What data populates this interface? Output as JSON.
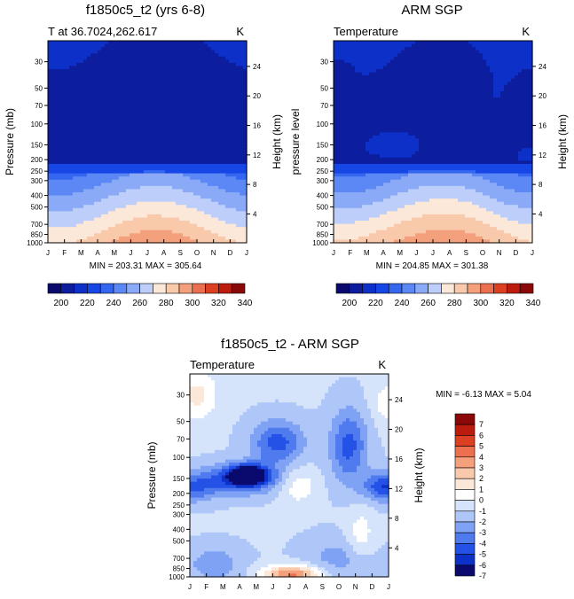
{
  "chart_data": [
    {
      "type": "heatmap",
      "id": "model",
      "title": "f1850c5_t2 (yrs 6-8)",
      "subtitle_left": "T at 36.7024,262.617",
      "subtitle_right": "K",
      "ylabel_left": "Pressure (mb)",
      "ylabel_right": "Height (km)",
      "min_max_label": "MIN = 203.31 MAX = 305.64",
      "months": [
        "J",
        "F",
        "M",
        "A",
        "M",
        "J",
        "J",
        "A",
        "S",
        "O",
        "N",
        "D",
        "J"
      ],
      "pressure_ticks": [
        30,
        50,
        70,
        100,
        150,
        200,
        250,
        300,
        400,
        500,
        700,
        850,
        1000
      ],
      "height_ticks": [
        4,
        8,
        12,
        16,
        20,
        24
      ],
      "ylim_mb": [
        1000,
        20
      ],
      "contour_levels": [
        200,
        210,
        220,
        230,
        240,
        250,
        260,
        270,
        280,
        290,
        300,
        310,
        320,
        330,
        340
      ],
      "colorbar_labels": [
        "200",
        "220",
        "240",
        "260",
        "280",
        "300",
        "320",
        "340"
      ],
      "colors": [
        "#0a0a6e",
        "#0c1d9e",
        "#0d30c8",
        "#1746e6",
        "#3466f0",
        "#5c88f5",
        "#8aaaf7",
        "#bccef9",
        "#fbe8d8",
        "#f9c9ab",
        "#f5a07c",
        "#ec6f4f",
        "#dd3f22",
        "#bc1c0e",
        "#8a0808"
      ]
    },
    {
      "type": "heatmap",
      "id": "obs",
      "title": "ARM SGP",
      "subtitle_left": "Temperature",
      "subtitle_right": "K",
      "ylabel_left": "pressure level",
      "ylabel_right": "Height (km)",
      "min_max_label": "MIN = 204.85 MAX = 301.38",
      "months": [
        "J",
        "F",
        "M",
        "A",
        "M",
        "J",
        "J",
        "A",
        "S",
        "O",
        "N",
        "D",
        "J"
      ],
      "pressure_ticks": [
        30,
        50,
        70,
        100,
        150,
        200,
        250,
        300,
        400,
        500,
        700,
        850,
        1000
      ],
      "height_ticks": [
        4,
        8,
        12,
        16,
        20,
        24
      ],
      "ylim_mb": [
        1000,
        20
      ],
      "contour_levels": [
        200,
        210,
        220,
        230,
        240,
        250,
        260,
        270,
        280,
        290,
        300,
        310,
        320,
        330,
        340
      ],
      "colorbar_labels": [
        "200",
        "220",
        "240",
        "260",
        "280",
        "300",
        "320",
        "340"
      ]
    },
    {
      "type": "heatmap",
      "id": "diff",
      "title": "f1850c5_t2 - ARM SGP",
      "subtitle_left": "Temperature",
      "subtitle_right": "K",
      "ylabel_left": "Pressure (mb)",
      "ylabel_right": "Height (km)",
      "min_max_label": "MIN =  -6.13 MAX =   5.04",
      "months": [
        "J",
        "F",
        "M",
        "A",
        "M",
        "J",
        "J",
        "A",
        "S",
        "O",
        "N",
        "D",
        "J"
      ],
      "pressure_ticks": [
        30,
        50,
        70,
        100,
        150,
        200,
        250,
        300,
        400,
        500,
        700,
        850,
        1000
      ],
      "height_ticks": [
        4,
        8,
        12,
        16,
        20,
        24
      ],
      "ylim_mb": [
        1000,
        20
      ],
      "contour_levels": [
        7,
        6,
        5,
        4,
        3,
        2,
        1,
        0,
        -1,
        -2,
        -3,
        -4,
        -5,
        -6,
        -7
      ],
      "colorbar_labels": [
        "7",
        "6",
        "5",
        "4",
        "3",
        "2",
        "1",
        "0",
        "-1",
        "-2",
        "-3",
        "-4",
        "-5",
        "-6",
        "-7"
      ],
      "colors": [
        "#8a0808",
        "#bc1c0e",
        "#dd3f22",
        "#ec6f4f",
        "#f5a07c",
        "#f9c9ab",
        "#fbe8d8",
        "#ffffff",
        "#d6e4fb",
        "#aec6f8",
        "#7fa2f4",
        "#4f7bef",
        "#2552e6",
        "#0d30c8",
        "#0a0a6e"
      ]
    }
  ]
}
